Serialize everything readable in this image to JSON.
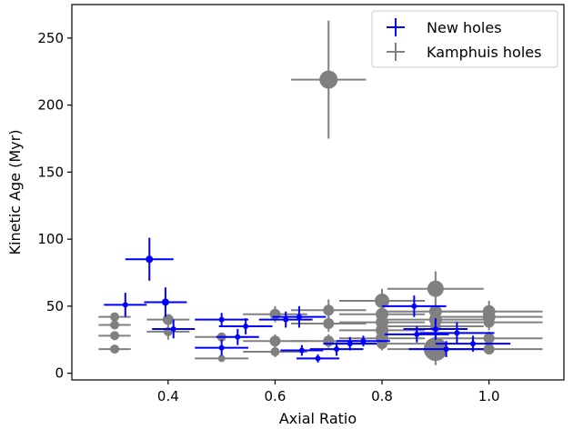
{
  "chart_data": {
    "type": "scatter",
    "title": "",
    "xlabel": "Axial Ratio",
    "ylabel": "Kinetic Age (Myr)",
    "xlim": [
      0.22,
      1.14
    ],
    "ylim": [
      -5,
      275
    ],
    "xticks": [
      0.4,
      0.6,
      0.8,
      1.0
    ],
    "xtick_labels": [
      "0.4",
      "0.6",
      "0.8",
      "1.0"
    ],
    "yticks": [
      0,
      50,
      100,
      150,
      200,
      250
    ],
    "ytick_labels": [
      "0",
      "50",
      "100",
      "150",
      "200",
      "250"
    ],
    "grid": false,
    "legend": {
      "position": "top-right",
      "entries": [
        "New holes",
        "Kamphuis holes"
      ]
    },
    "series": [
      {
        "name": "New holes",
        "color": "#0000ff",
        "marker": "circle",
        "points": [
          {
            "x": 0.32,
            "y": 51,
            "xerr": 0.04,
            "yerr": 9,
            "size": 3
          },
          {
            "x": 0.365,
            "y": 85,
            "xerr": 0.045,
            "yerr": 16,
            "size": 4
          },
          {
            "x": 0.395,
            "y": 53,
            "xerr": 0.04,
            "yerr": 11,
            "size": 4
          },
          {
            "x": 0.41,
            "y": 33,
            "xerr": 0.04,
            "yerr": 7,
            "size": 3
          },
          {
            "x": 0.5,
            "y": 40,
            "xerr": 0.05,
            "yerr": 5,
            "size": 3
          },
          {
            "x": 0.5,
            "y": 19,
            "xerr": 0.05,
            "yerr": 6,
            "size": 3
          },
          {
            "x": 0.53,
            "y": 27,
            "xerr": 0.04,
            "yerr": 6,
            "size": 3
          },
          {
            "x": 0.545,
            "y": 35,
            "xerr": 0.05,
            "yerr": 6,
            "size": 3
          },
          {
            "x": 0.62,
            "y": 40,
            "xerr": 0.05,
            "yerr": 6,
            "size": 3
          },
          {
            "x": 0.645,
            "y": 42,
            "xerr": 0.05,
            "yerr": 8,
            "size": 3
          },
          {
            "x": 0.65,
            "y": 17,
            "xerr": 0.04,
            "yerr": 4,
            "size": 3
          },
          {
            "x": 0.68,
            "y": 11,
            "xerr": 0.04,
            "yerr": 3,
            "size": 3
          },
          {
            "x": 0.715,
            "y": 18,
            "xerr": 0.05,
            "yerr": 5,
            "size": 3
          },
          {
            "x": 0.74,
            "y": 22,
            "xerr": 0.05,
            "yerr": 5,
            "size": 3
          },
          {
            "x": 0.765,
            "y": 24,
            "xerr": 0.05,
            "yerr": 4,
            "size": 3
          },
          {
            "x": 0.86,
            "y": 50,
            "xerr": 0.06,
            "yerr": 8,
            "size": 3
          },
          {
            "x": 0.865,
            "y": 29,
            "xerr": 0.06,
            "yerr": 6,
            "size": 3
          },
          {
            "x": 0.9,
            "y": 33,
            "xerr": 0.06,
            "yerr": 8,
            "size": 3
          },
          {
            "x": 0.92,
            "y": 18,
            "xerr": 0.07,
            "yerr": 6,
            "size": 3
          },
          {
            "x": 0.94,
            "y": 30,
            "xerr": 0.07,
            "yerr": 8,
            "size": 3
          },
          {
            "x": 0.97,
            "y": 22,
            "xerr": 0.07,
            "yerr": 6,
            "size": 3
          }
        ]
      },
      {
        "name": "Kamphuis holes",
        "color": "#808080",
        "marker": "circle",
        "points": [
          {
            "x": 0.3,
            "y": 42,
            "xerr": 0.03,
            "yerr": 0,
            "size": 5
          },
          {
            "x": 0.3,
            "y": 36,
            "xerr": 0.03,
            "yerr": 0,
            "size": 5
          },
          {
            "x": 0.3,
            "y": 28,
            "xerr": 0.03,
            "yerr": 0,
            "size": 5
          },
          {
            "x": 0.3,
            "y": 18,
            "xerr": 0.03,
            "yerr": 0,
            "size": 5
          },
          {
            "x": 0.4,
            "y": 40,
            "xerr": 0.04,
            "yerr": 4,
            "size": 6
          },
          {
            "x": 0.4,
            "y": 31,
            "xerr": 0.04,
            "yerr": 6,
            "size": 5
          },
          {
            "x": 0.5,
            "y": 27,
            "xerr": 0.05,
            "yerr": 0,
            "size": 5
          },
          {
            "x": 0.5,
            "y": 11,
            "xerr": 0.05,
            "yerr": 0,
            "size": 4
          },
          {
            "x": 0.6,
            "y": 44,
            "xerr": 0.06,
            "yerr": 6,
            "size": 6
          },
          {
            "x": 0.6,
            "y": 24,
            "xerr": 0.06,
            "yerr": 5,
            "size": 6
          },
          {
            "x": 0.6,
            "y": 16,
            "xerr": 0.06,
            "yerr": 4,
            "size": 5
          },
          {
            "x": 0.7,
            "y": 219,
            "xerr": 0.07,
            "yerr": 44,
            "size": 10
          },
          {
            "x": 0.7,
            "y": 47,
            "xerr": 0.07,
            "yerr": 8,
            "size": 6
          },
          {
            "x": 0.7,
            "y": 37,
            "xerr": 0.07,
            "yerr": 6,
            "size": 6
          },
          {
            "x": 0.7,
            "y": 24,
            "xerr": 0.07,
            "yerr": 5,
            "size": 6
          },
          {
            "x": 0.8,
            "y": 54,
            "xerr": 0.08,
            "yerr": 9,
            "size": 8
          },
          {
            "x": 0.8,
            "y": 44,
            "xerr": 0.08,
            "yerr": 7,
            "size": 7
          },
          {
            "x": 0.8,
            "y": 38,
            "xerr": 0.08,
            "yerr": 6,
            "size": 7
          },
          {
            "x": 0.8,
            "y": 32,
            "xerr": 0.08,
            "yerr": 6,
            "size": 7
          },
          {
            "x": 0.8,
            "y": 26,
            "xerr": 0.08,
            "yerr": 5,
            "size": 7
          },
          {
            "x": 0.8,
            "y": 22,
            "xerr": 0.08,
            "yerr": 5,
            "size": 6
          },
          {
            "x": 0.9,
            "y": 63,
            "xerr": 0.09,
            "yerr": 13,
            "size": 9
          },
          {
            "x": 0.9,
            "y": 46,
            "xerr": 0.09,
            "yerr": 8,
            "size": 7
          },
          {
            "x": 0.9,
            "y": 40,
            "xerr": 0.09,
            "yerr": 7,
            "size": 7
          },
          {
            "x": 0.9,
            "y": 35,
            "xerr": 0.09,
            "yerr": 6,
            "size": 6
          },
          {
            "x": 0.9,
            "y": 18,
            "xerr": 0.09,
            "yerr": 12,
            "size": 13
          },
          {
            "x": 1.0,
            "y": 46,
            "xerr": 0.1,
            "yerr": 8,
            "size": 7
          },
          {
            "x": 1.0,
            "y": 42,
            "xerr": 0.1,
            "yerr": 7,
            "size": 7
          },
          {
            "x": 1.0,
            "y": 38,
            "xerr": 0.1,
            "yerr": 6,
            "size": 6
          },
          {
            "x": 1.0,
            "y": 26,
            "xerr": 0.1,
            "yerr": 5,
            "size": 6
          },
          {
            "x": 1.0,
            "y": 18,
            "xerr": 0.1,
            "yerr": 4,
            "size": 6
          }
        ]
      }
    ]
  }
}
